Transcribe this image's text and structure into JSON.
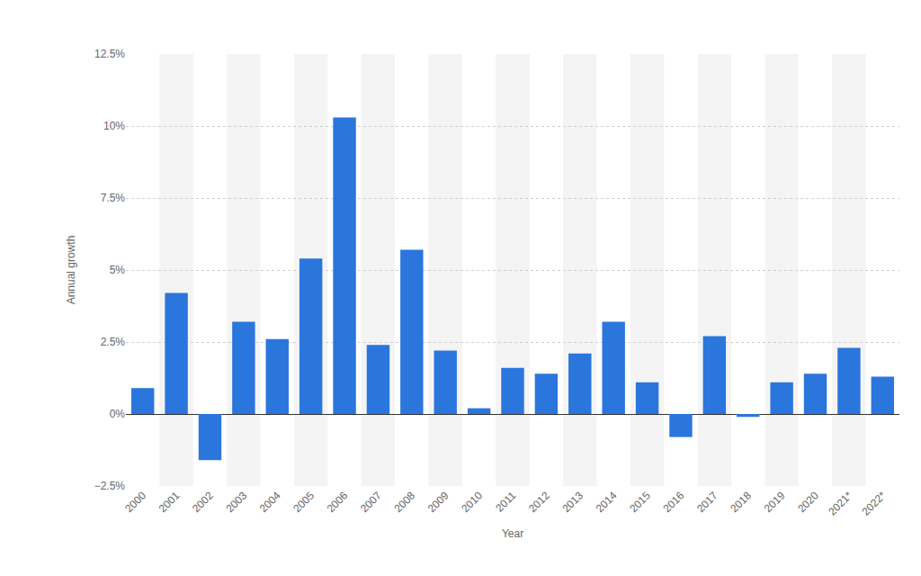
{
  "chart_data": {
    "type": "bar",
    "x_label": "Year",
    "y_label": "Annual growth",
    "categories": [
      "2000",
      "2001",
      "2002",
      "2003",
      "2004",
      "2005",
      "2006",
      "2007",
      "2008",
      "2009",
      "2010",
      "2011",
      "2012",
      "2013",
      "2014",
      "2015",
      "2016",
      "2017",
      "2018",
      "2019",
      "2020",
      "2021*",
      "2022*"
    ],
    "values": [
      0.9,
      4.2,
      -1.6,
      3.2,
      2.6,
      5.4,
      10.3,
      2.4,
      5.7,
      2.2,
      0.2,
      1.6,
      1.4,
      2.1,
      3.2,
      1.1,
      -0.8,
      2.7,
      -0.1,
      1.1,
      1.4,
      2.3,
      1.3
    ],
    "color": "#2a76dd",
    "ylim": [
      -2.5,
      12.5
    ],
    "yticks": [
      {
        "value": -2.5,
        "label": "−2.5%"
      },
      {
        "value": 0,
        "label": "0%"
      },
      {
        "value": 2.5,
        "label": "2.5%"
      },
      {
        "value": 5,
        "label": "5%"
      },
      {
        "value": 7.5,
        "label": "7.5%"
      },
      {
        "value": 10,
        "label": "10%"
      },
      {
        "value": 12.5,
        "label": "12.5%"
      }
    ],
    "grid": true
  }
}
